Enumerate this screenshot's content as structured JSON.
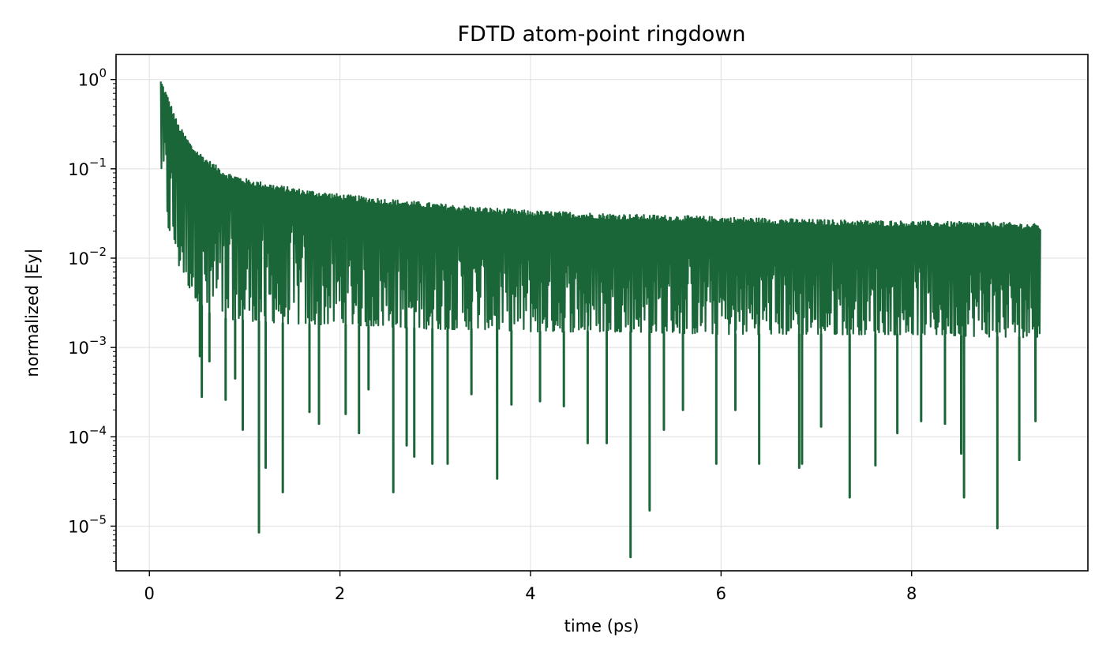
{
  "chart_data": {
    "type": "line",
    "title": "FDTD atom-point ringdown",
    "xlabel": "time (ps)",
    "ylabel": "normalized |Ey|",
    "xlim": [
      -0.35,
      9.85
    ],
    "ylim_log10": [
      -5.5,
      0.28
    ],
    "yscale": "log",
    "grid": true,
    "x_ticks": [
      0,
      2,
      4,
      6,
      8
    ],
    "x_tick_labels": [
      "0",
      "2",
      "4",
      "6",
      "8"
    ],
    "y_ticks": [
      1,
      0.1,
      0.01,
      0.001,
      0.0001,
      1e-05
    ],
    "y_tick_labels": [
      {
        "base": "10",
        "exp": "0"
      },
      {
        "base": "10",
        "exp": "−1"
      },
      {
        "base": "10",
        "exp": "−2"
      },
      {
        "base": "10",
        "exp": "−3"
      },
      {
        "base": "10",
        "exp": "−4"
      },
      {
        "base": "10",
        "exp": "−5"
      }
    ],
    "series_color": "#1b6638",
    "envelope": {
      "t": [
        0.12,
        0.2,
        0.3,
        0.45,
        0.6,
        0.8,
        1.0,
        1.3,
        1.6,
        2.0,
        2.5,
        3.0,
        3.5,
        4.0,
        5.0,
        6.0,
        7.0,
        8.0,
        9.0,
        9.35
      ],
      "upper": [
        1.0,
        0.62,
        0.32,
        0.18,
        0.13,
        0.092,
        0.078,
        0.067,
        0.059,
        0.052,
        0.046,
        0.041,
        0.037,
        0.034,
        0.031,
        0.029,
        0.027,
        0.026,
        0.025,
        0.024
      ],
      "lower": [
        0.1,
        0.02,
        0.008,
        0.004,
        0.0025,
        0.0021,
        0.002,
        0.0019,
        0.0018,
        0.0018,
        0.0017,
        0.0016,
        0.0016,
        0.0015,
        0.0015,
        0.0014,
        0.0014,
        0.0014,
        0.0013,
        0.0013
      ]
    },
    "dips": [
      {
        "t": 0.53,
        "y": 0.0008
      },
      {
        "t": 0.55,
        "y": 0.00028
      },
      {
        "t": 0.63,
        "y": 0.0007
      },
      {
        "t": 0.8,
        "y": 0.00026
      },
      {
        "t": 0.9,
        "y": 0.00045
      },
      {
        "t": 0.98,
        "y": 0.00012
      },
      {
        "t": 1.15,
        "y": 8.5e-06
      },
      {
        "t": 1.22,
        "y": 4.5e-05
      },
      {
        "t": 1.4,
        "y": 2.4e-05
      },
      {
        "t": 1.68,
        "y": 0.00019
      },
      {
        "t": 1.78,
        "y": 0.00014
      },
      {
        "t": 2.06,
        "y": 0.00018
      },
      {
        "t": 2.2,
        "y": 0.00011
      },
      {
        "t": 2.3,
        "y": 0.00034
      },
      {
        "t": 2.56,
        "y": 2.4e-05
      },
      {
        "t": 2.7,
        "y": 8e-05
      },
      {
        "t": 2.78,
        "y": 6e-05
      },
      {
        "t": 2.97,
        "y": 5e-05
      },
      {
        "t": 3.13,
        "y": 5e-05
      },
      {
        "t": 3.38,
        "y": 0.0003
      },
      {
        "t": 3.65,
        "y": 3.4e-05
      },
      {
        "t": 3.8,
        "y": 0.00023
      },
      {
        "t": 4.1,
        "y": 0.00025
      },
      {
        "t": 4.35,
        "y": 0.00022
      },
      {
        "t": 4.6,
        "y": 8.5e-05
      },
      {
        "t": 4.8,
        "y": 8.5e-05
      },
      {
        "t": 5.05,
        "y": 4.5e-06
      },
      {
        "t": 5.25,
        "y": 1.5e-05
      },
      {
        "t": 5.4,
        "y": 0.00012
      },
      {
        "t": 5.6,
        "y": 0.0002
      },
      {
        "t": 5.95,
        "y": 5e-05
      },
      {
        "t": 6.15,
        "y": 0.0002
      },
      {
        "t": 6.4,
        "y": 5e-05
      },
      {
        "t": 6.82,
        "y": 4.5e-05
      },
      {
        "t": 6.85,
        "y": 5e-05
      },
      {
        "t": 7.05,
        "y": 0.00013
      },
      {
        "t": 7.35,
        "y": 2.1e-05
      },
      {
        "t": 7.62,
        "y": 4.8e-05
      },
      {
        "t": 7.85,
        "y": 0.00011
      },
      {
        "t": 8.1,
        "y": 0.00015
      },
      {
        "t": 8.35,
        "y": 0.00014
      },
      {
        "t": 8.52,
        "y": 6.5e-05
      },
      {
        "t": 8.55,
        "y": 2.1e-05
      },
      {
        "t": 8.9,
        "y": 9.5e-06
      },
      {
        "t": 9.13,
        "y": 5.5e-05
      },
      {
        "t": 9.3,
        "y": 0.00015
      }
    ]
  }
}
